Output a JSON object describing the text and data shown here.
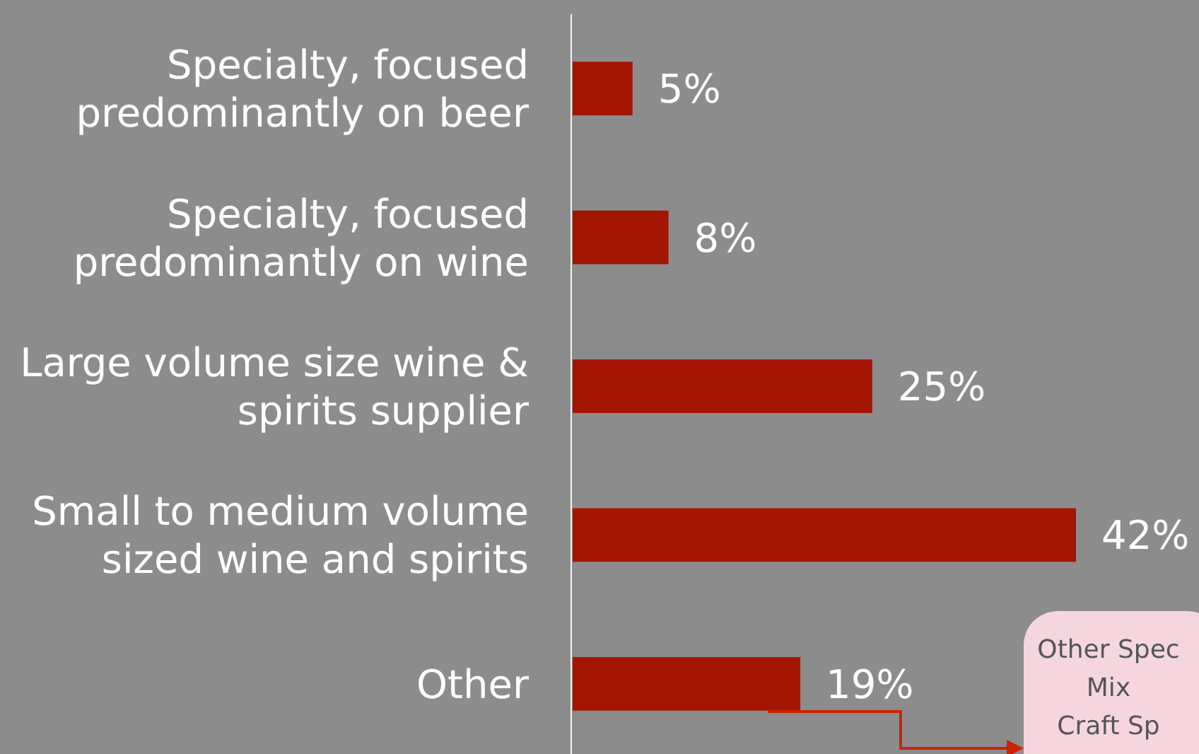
{
  "chart_data": {
    "type": "bar",
    "orientation": "horizontal",
    "categories": [
      "Specialty, focused predominantly on beer",
      "Specialty, focused predominantly on wine",
      "Large volume size wine & spirits supplier",
      "Small to medium volume sized wine and spirits",
      "Other"
    ],
    "values": [
      5,
      8,
      25,
      42,
      19
    ],
    "color": "#a31500",
    "value_labels": [
      "5%",
      "8%",
      "25%",
      "42%",
      "19%"
    ],
    "annotations": [
      "Other Spec",
      "Mix",
      "Craft Sp"
    ]
  }
}
